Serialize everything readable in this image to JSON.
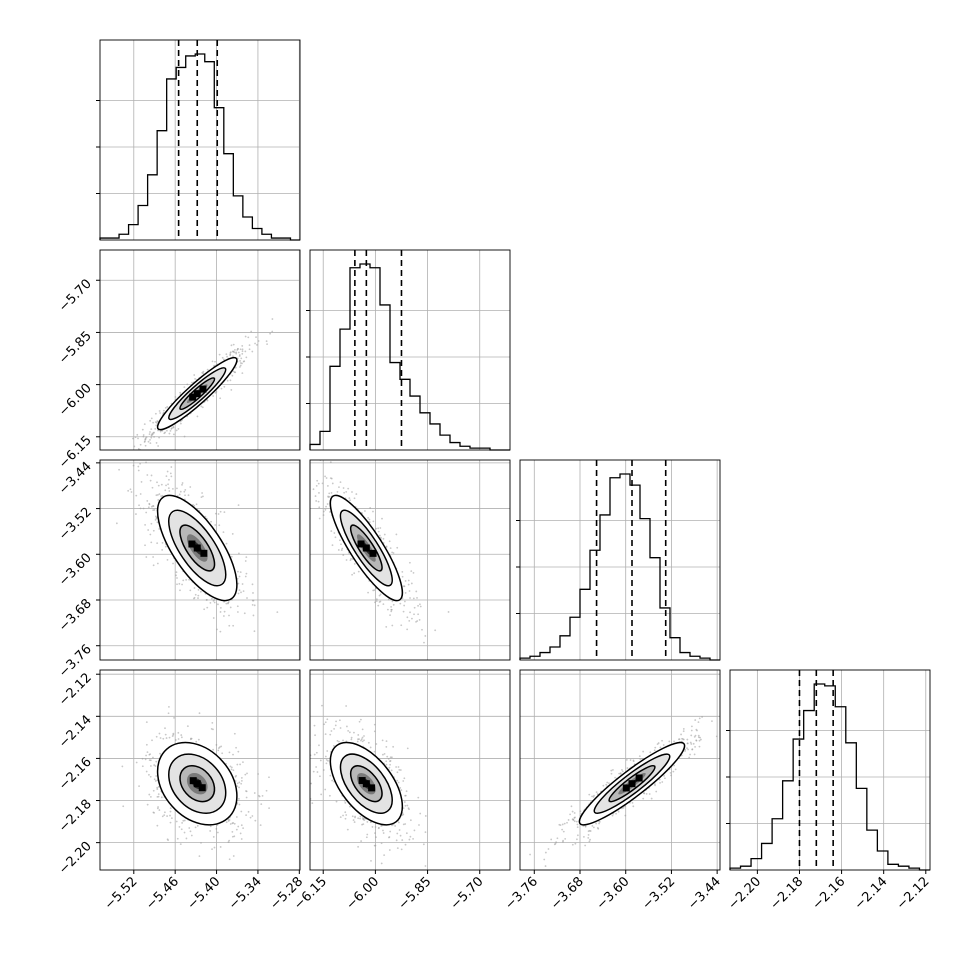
{
  "chart_data": {
    "type": "corner",
    "parameters": [
      {
        "ticks": [
          -5.52,
          -5.46,
          -5.4,
          -5.34,
          -5.28
        ],
        "tick_labels": [
          "−5.52",
          "−5.46",
          "−5.40",
          "−5.34",
          "−5.28"
        ],
        "range": [
          -5.569,
          -5.279
        ],
        "quantiles": [
          -5.455,
          -5.428,
          -5.399
        ],
        "hist_peak": 1.0
      },
      {
        "ticks": [
          -6.15,
          -6.0,
          -5.85,
          -5.7
        ],
        "tick_labels": [
          "−6.15",
          "−6.00",
          "−5.85",
          "−5.70"
        ],
        "range": [
          -6.188,
          -5.613
        ],
        "quantiles": [
          -6.059,
          -6.026,
          -5.925
        ],
        "hist_peak": 1.0
      },
      {
        "ticks": [
          -3.76,
          -3.68,
          -3.6,
          -3.52,
          -3.44
        ],
        "tick_labels": [
          "−3.76",
          "−3.68",
          "−3.60",
          "−3.52",
          "−3.44"
        ],
        "range": [
          -3.785,
          -3.435
        ],
        "quantiles": [
          -3.651,
          -3.589,
          -3.53
        ],
        "hist_peak": 1.0
      },
      {
        "ticks": [
          -2.2,
          -2.18,
          -2.16,
          -2.14,
          -2.12
        ],
        "tick_labels": [
          "−2.20",
          "−2.18",
          "−2.16",
          "−2.14",
          "−2.12"
        ],
        "range": [
          -2.213,
          -2.118
        ],
        "quantiles": [
          -2.18,
          -2.172,
          -2.164
        ],
        "hist_peak": 1.0
      }
    ],
    "histograms": [
      {
        "param": 0,
        "values": [
          0.01,
          0.01,
          0.03,
          0.08,
          0.18,
          0.34,
          0.57,
          0.84,
          0.9,
          0.96,
          0.97,
          0.93,
          0.69,
          0.45,
          0.23,
          0.12,
          0.06,
          0.03,
          0.01,
          0.01,
          0.0
        ]
      },
      {
        "param": 1,
        "values": [
          0.03,
          0.1,
          0.45,
          0.65,
          0.98,
          1.0,
          0.98,
          0.78,
          0.47,
          0.38,
          0.29,
          0.2,
          0.14,
          0.08,
          0.04,
          0.02,
          0.01,
          0.01,
          0.0,
          0.0
        ]
      },
      {
        "param": 2,
        "values": [
          0.01,
          0.02,
          0.04,
          0.07,
          0.13,
          0.23,
          0.38,
          0.59,
          0.78,
          0.98,
          1.0,
          0.94,
          0.76,
          0.55,
          0.28,
          0.12,
          0.04,
          0.02,
          0.01,
          0.0
        ]
      },
      {
        "param": 3,
        "values": [
          0.01,
          0.02,
          0.06,
          0.14,
          0.27,
          0.47,
          0.69,
          0.84,
          0.98,
          0.97,
          0.86,
          0.67,
          0.43,
          0.21,
          0.1,
          0.03,
          0.02,
          0.01,
          0.0
        ]
      }
    ],
    "pairs": [
      {
        "x": 0,
        "y": 1,
        "center": [
          -5.428,
          -6.026
        ],
        "sigma": [
          0.025,
          0.045
        ],
        "corr": 0.93
      },
      {
        "x": 0,
        "y": 2,
        "center": [
          -5.428,
          -3.589
        ],
        "sigma": [
          0.025,
          0.04
        ],
        "corr": -0.7
      },
      {
        "x": 0,
        "y": 3,
        "center": [
          -5.428,
          -2.172
        ],
        "sigma": [
          0.025,
          0.0085
        ],
        "corr": -0.3
      },
      {
        "x": 1,
        "y": 2,
        "center": [
          -6.026,
          -3.589
        ],
        "sigma": [
          0.045,
          0.04
        ],
        "corr": -0.85
      },
      {
        "x": 1,
        "y": 3,
        "center": [
          -6.026,
          -2.172
        ],
        "sigma": [
          0.045,
          0.0085
        ],
        "corr": -0.55
      },
      {
        "x": 2,
        "y": 3,
        "center": [
          -3.589,
          -2.172
        ],
        "sigma": [
          0.04,
          0.0085
        ],
        "corr": 0.92
      }
    ],
    "grid": true,
    "colors": {
      "line": "#000000",
      "points": "#9a9a9a",
      "grid": "#b0b0b0",
      "density": "#000000"
    }
  }
}
